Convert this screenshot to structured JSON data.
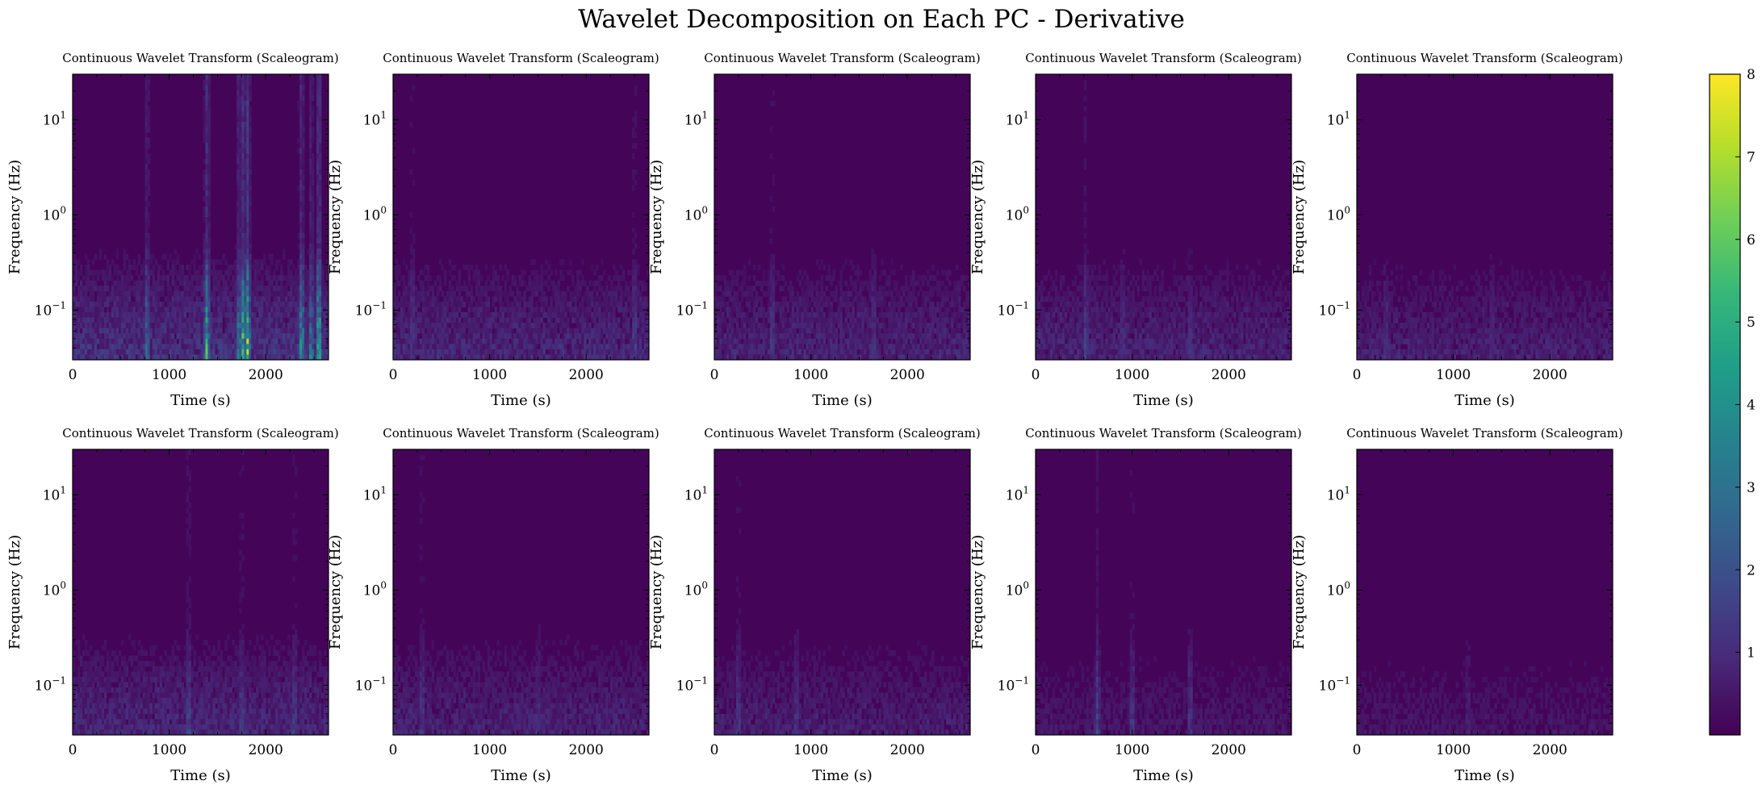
{
  "figure": {
    "suptitle": "Wavelet Decomposition on Each PC - Derivative"
  },
  "colors": {
    "colormap": "viridis",
    "viridis_stops": [
      "#440154",
      "#482878",
      "#3e4989",
      "#31688e",
      "#26828e",
      "#1f9e89",
      "#35b779",
      "#6ece58",
      "#b5de2b",
      "#fde725"
    ],
    "axes": "#000000",
    "background": "#ffffff"
  },
  "chart_data": {
    "type": "heatmap",
    "layout": "2 rows x 5 columns",
    "shared_colorbar": {
      "vmin": 0,
      "vmax": 8,
      "ticks": [
        "1",
        "2",
        "3",
        "4",
        "5",
        "6",
        "7",
        "8"
      ]
    },
    "panel_defaults": {
      "title": "Continuous Wavelet Transform (Scaleogram)",
      "xlabel": "Time (s)",
      "ylabel": "Frequency (Hz)",
      "xlim": [
        0,
        2650
      ],
      "xticks": [
        "0",
        "1000",
        "2000"
      ],
      "yscale": "log",
      "ylim": [
        0.03,
        30
      ],
      "yticks": [
        {
          "value": 0.1,
          "base": "10",
          "exp": "−1"
        },
        {
          "value": 1,
          "base": "10",
          "exp": "0"
        },
        {
          "value": 10,
          "base": "10",
          "exp": "1"
        }
      ]
    },
    "panels": [
      {
        "title": "Continuous Wavelet Transform (Scaleogram)",
        "xlabel": "Time (s)",
        "ylabel": "Frequency (Hz)",
        "low_freq_level": 1.3,
        "high_freq_level": 0.35,
        "hotspots": [
          {
            "t": 1810,
            "value": 8
          },
          {
            "t": 2550,
            "value": 7.5
          },
          {
            "t": 1390,
            "value": 6.5
          },
          {
            "t": 2370,
            "value": 6
          },
          {
            "t": 1760,
            "value": 7
          },
          {
            "t": 770,
            "value": 4
          },
          {
            "t": 2470,
            "value": 4.5
          },
          {
            "t": 1720,
            "value": 5
          }
        ]
      },
      {
        "title": "Continuous Wavelet Transform (Scaleogram)",
        "xlabel": "Time (s)",
        "ylabel": "Frequency (Hz)",
        "low_freq_level": 1.0,
        "high_freq_level": 0.25,
        "hotspots": [
          {
            "t": 2500,
            "value": 2.5
          },
          {
            "t": 200,
            "value": 2.2
          }
        ]
      },
      {
        "title": "Continuous Wavelet Transform (Scaleogram)",
        "xlabel": "Time (s)",
        "ylabel": "Frequency (Hz)",
        "low_freq_level": 0.9,
        "high_freq_level": 0.25,
        "hotspots": [
          {
            "t": 600,
            "value": 2.3
          },
          {
            "t": 1650,
            "value": 2.0
          }
        ]
      },
      {
        "title": "Continuous Wavelet Transform (Scaleogram)",
        "xlabel": "Time (s)",
        "ylabel": "Frequency (Hz)",
        "low_freq_level": 0.9,
        "high_freq_level": 0.25,
        "hotspots": [
          {
            "t": 520,
            "value": 2.4
          },
          {
            "t": 900,
            "value": 2.0
          },
          {
            "t": 1600,
            "value": 1.8
          }
        ]
      },
      {
        "title": "Continuous Wavelet Transform (Scaleogram)",
        "xlabel": "Time (s)",
        "ylabel": "Frequency (Hz)",
        "low_freq_level": 0.8,
        "high_freq_level": 0.22,
        "hotspots": [
          {
            "t": 300,
            "value": 1.8
          },
          {
            "t": 1400,
            "value": 1.6
          }
        ]
      },
      {
        "title": "Continuous Wavelet Transform (Scaleogram)",
        "xlabel": "Time (s)",
        "ylabel": "Frequency (Hz)",
        "low_freq_level": 1.0,
        "high_freq_level": 0.25,
        "hotspots": [
          {
            "t": 1200,
            "value": 2.6
          },
          {
            "t": 1750,
            "value": 2.4
          },
          {
            "t": 2300,
            "value": 2.3
          }
        ]
      },
      {
        "title": "Continuous Wavelet Transform (Scaleogram)",
        "xlabel": "Time (s)",
        "ylabel": "Frequency (Hz)",
        "low_freq_level": 0.85,
        "high_freq_level": 0.22,
        "hotspots": [
          {
            "t": 300,
            "value": 2.2
          },
          {
            "t": 1500,
            "value": 1.8
          }
        ]
      },
      {
        "title": "Continuous Wavelet Transform (Scaleogram)",
        "xlabel": "Time (s)",
        "ylabel": "Frequency (Hz)",
        "low_freq_level": 0.75,
        "high_freq_level": 0.2,
        "hotspots": [
          {
            "t": 250,
            "value": 2.2
          },
          {
            "t": 850,
            "value": 2.0
          }
        ]
      },
      {
        "title": "Continuous Wavelet Transform (Scaleogram)",
        "xlabel": "Time (s)",
        "ylabel": "Frequency (Hz)",
        "low_freq_level": 0.55,
        "high_freq_level": 0.15,
        "hotspots": [
          {
            "t": 640,
            "value": 2.4
          },
          {
            "t": 1000,
            "value": 2.2
          },
          {
            "t": 1600,
            "value": 2.0
          }
        ]
      },
      {
        "title": "Continuous Wavelet Transform (Scaleogram)",
        "xlabel": "Time (s)",
        "ylabel": "Frequency (Hz)",
        "low_freq_level": 0.5,
        "high_freq_level": 0.15,
        "hotspots": [
          {
            "t": 1150,
            "value": 1.3
          }
        ]
      }
    ]
  }
}
